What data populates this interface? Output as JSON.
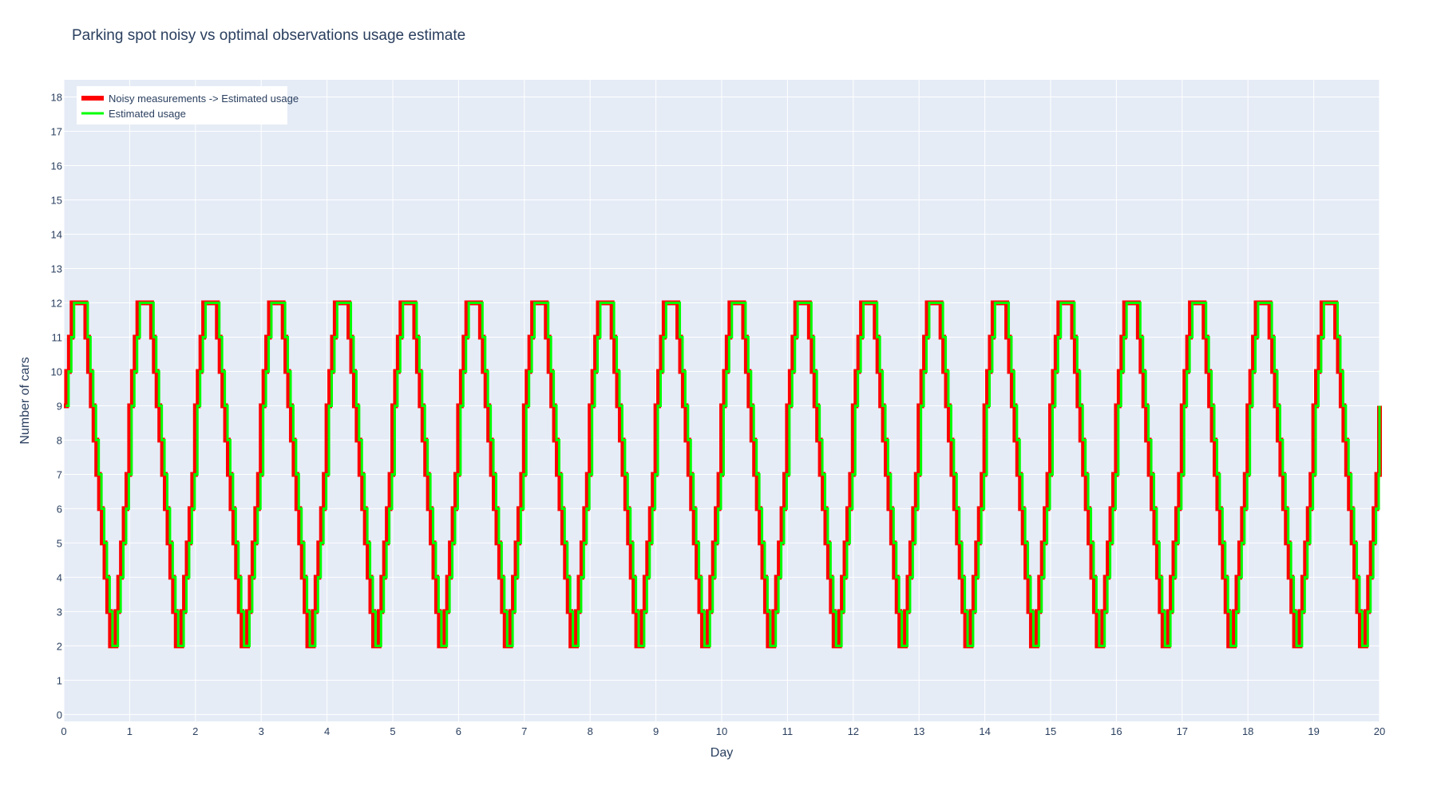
{
  "chart_data": {
    "type": "line",
    "title": "Parking spot noisy vs optimal observations usage estimate",
    "xlabel": "Day",
    "ylabel": "Number of cars",
    "xlim": [
      0,
      20
    ],
    "ylim": [
      -0.2,
      18.5
    ],
    "x_ticks": [
      "0",
      "1",
      "2",
      "3",
      "4",
      "5",
      "6",
      "7",
      "8",
      "9",
      "10",
      "11",
      "12",
      "13",
      "14",
      "15",
      "16",
      "17",
      "18",
      "19",
      "20"
    ],
    "y_ticks": [
      "0",
      "1",
      "2",
      "3",
      "4",
      "5",
      "6",
      "7",
      "8",
      "9",
      "10",
      "11",
      "12",
      "13",
      "14",
      "15",
      "16",
      "17",
      "18"
    ],
    "grid": true,
    "legend_position": "top-left",
    "line_shape": "step",
    "daily_profile": [
      9,
      10,
      11,
      12,
      12,
      12,
      12,
      12,
      11,
      10,
      9,
      8,
      7,
      6,
      5,
      4,
      3,
      2,
      2,
      3,
      4,
      5,
      6,
      7,
      8
    ],
    "samples_per_day": 24,
    "days": 20,
    "series": [
      {
        "name": "Noisy measurements -> Estimated usage",
        "color": "#ff0000",
        "width": 6,
        "offset_days": 0.0
      },
      {
        "name": "Estimated usage",
        "color": "#00ff00",
        "width": 3,
        "offset_days": 0.03
      }
    ]
  },
  "colors": {
    "plot_background": "#e5ecf6",
    "gridline": "#ffffff",
    "text": "#2a3f5f"
  }
}
